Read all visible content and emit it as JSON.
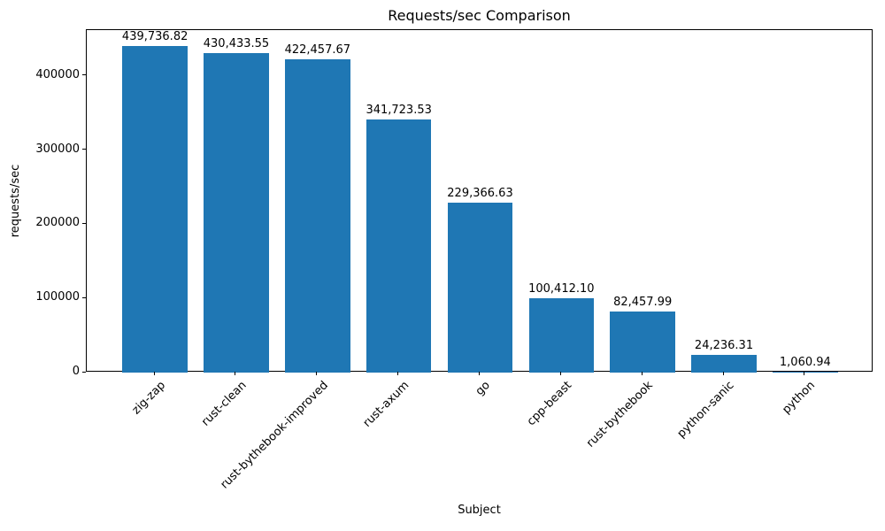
{
  "chart_data": {
    "type": "bar",
    "title": "Requests/sec Comparison",
    "xlabel": "Subject",
    "ylabel": "requests/sec",
    "categories": [
      "zig-zap",
      "rust-clean",
      "rust-bythebook-improved",
      "rust-axum",
      "go",
      "cpp-beast",
      "rust-bythebook",
      "python-sanic",
      "python"
    ],
    "values": [
      439736.82,
      430433.55,
      422457.67,
      341723.53,
      229366.63,
      100412.1,
      82457.99,
      24236.31,
      1060.94
    ],
    "value_labels": [
      "439,736.82",
      "430,433.55",
      "422,457.67",
      "341,723.53",
      "229,366.63",
      "100,412.10",
      "82,457.99",
      "24,236.31",
      "1,060.94"
    ],
    "bar_color": "#1f77b4",
    "ylim": [
      0,
      461723.66
    ],
    "yticks": [
      0,
      100000,
      200000,
      300000,
      400000
    ],
    "ytick_labels": [
      "0",
      "100000",
      "200000",
      "300000",
      "400000"
    ],
    "x_tick_rotation": 45,
    "grid": false,
    "legend": null
  }
}
